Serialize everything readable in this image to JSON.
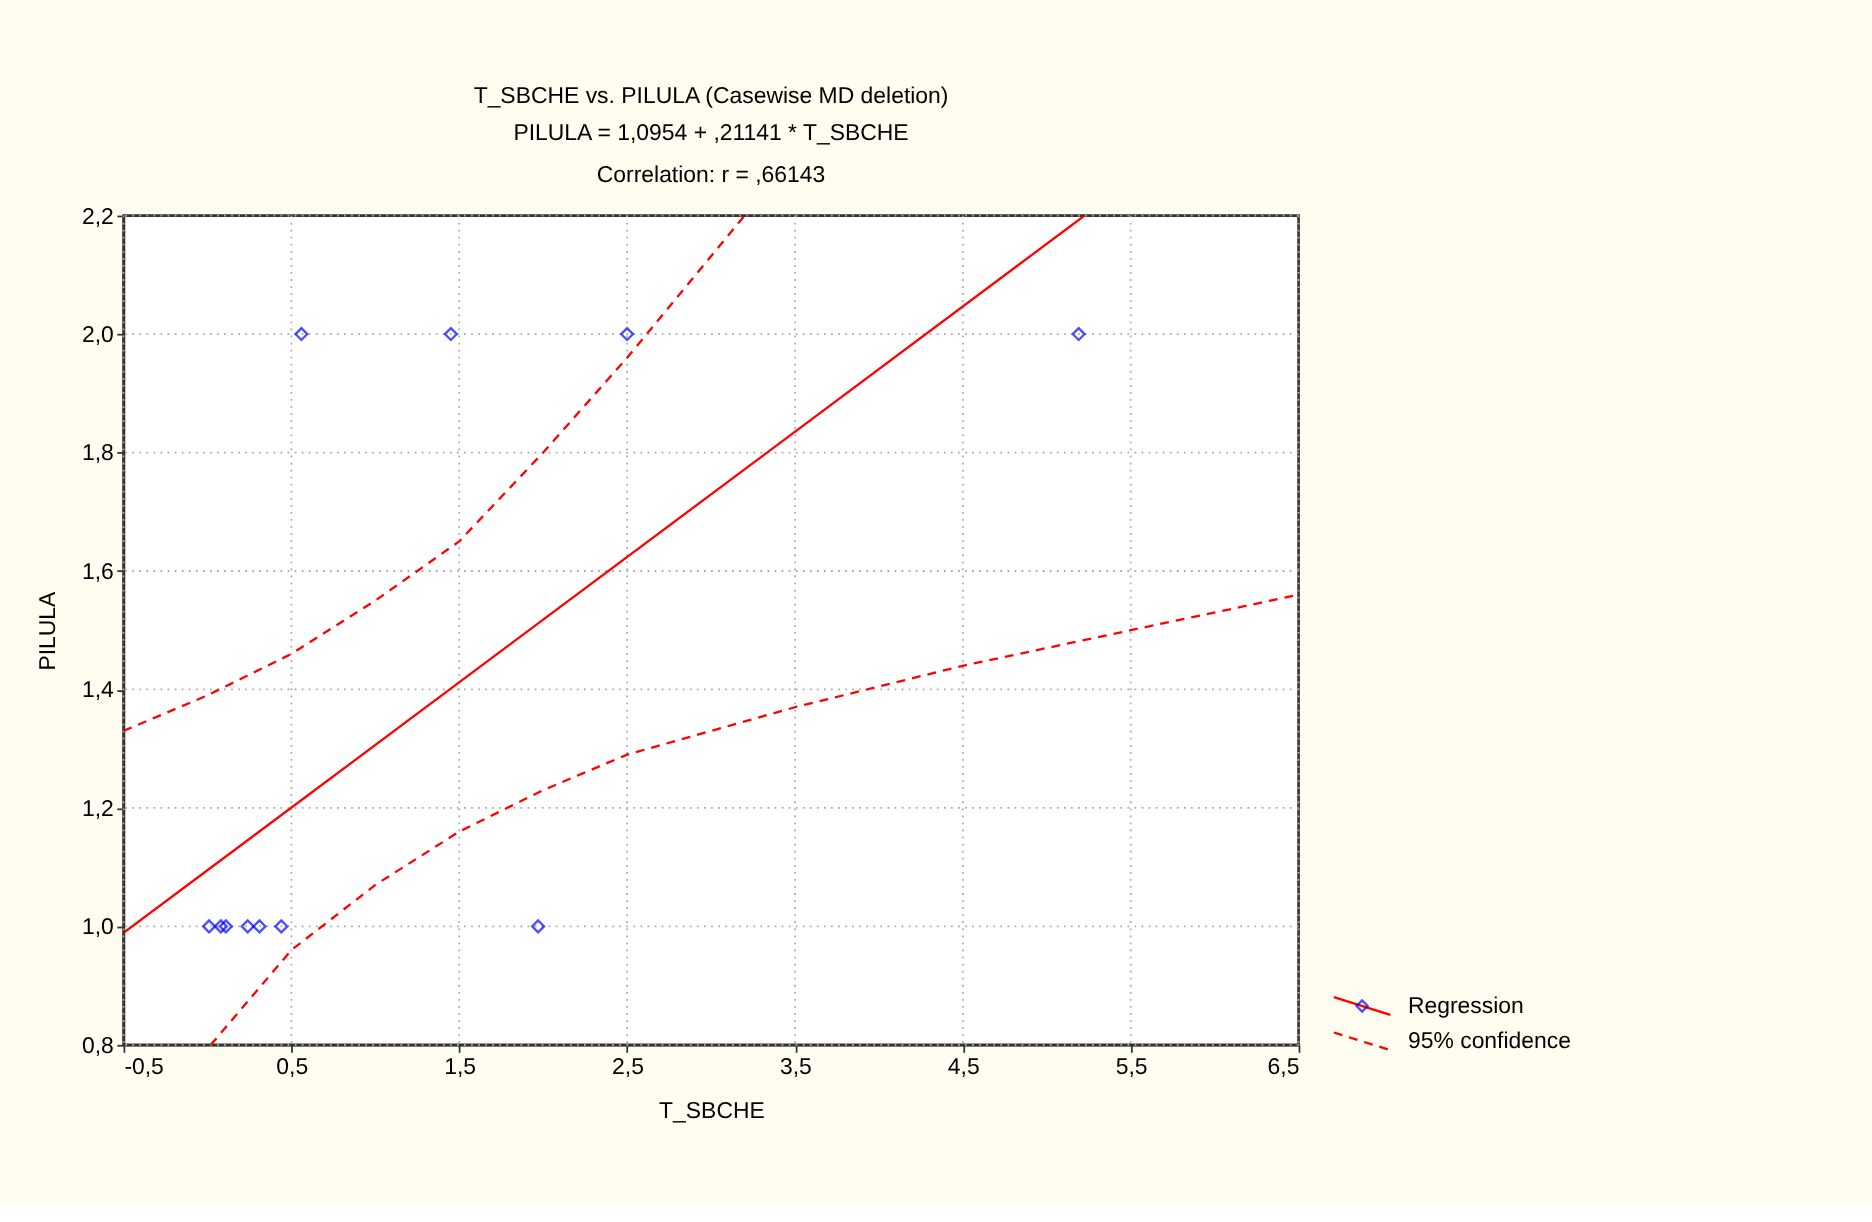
{
  "chart_data": {
    "type": "scatter",
    "title": "T_SBCHE vs. PILULA (Casewise MD deletion)",
    "subtitle": "PILULA = 1,0954 + ,21141 * T_SBCHE",
    "annotations": [
      "Correlation: r = ,66143"
    ],
    "xlabel": "T_SBCHE",
    "ylabel": "PILULA",
    "xlim": [
      -0.5,
      6.5
    ],
    "ylim": [
      0.8,
      2.2
    ],
    "xticks": [
      {
        "value": -0.5,
        "label": "-0,5"
      },
      {
        "value": 0.5,
        "label": "0,5"
      },
      {
        "value": 1.5,
        "label": "1,5"
      },
      {
        "value": 2.5,
        "label": "2,5"
      },
      {
        "value": 3.5,
        "label": "3,5"
      },
      {
        "value": 4.5,
        "label": "4,5"
      },
      {
        "value": 5.5,
        "label": "5,5"
      },
      {
        "value": 6.5,
        "label": "6,5"
      }
    ],
    "yticks": [
      {
        "value": 0.8,
        "label": "0,8"
      },
      {
        "value": 1.0,
        "label": "1,0"
      },
      {
        "value": 1.2,
        "label": "1,2"
      },
      {
        "value": 1.4,
        "label": "1,4"
      },
      {
        "value": 1.6,
        "label": "1,6"
      },
      {
        "value": 1.8,
        "label": "1,8"
      },
      {
        "value": 2.0,
        "label": "2,0"
      },
      {
        "value": 2.2,
        "label": "2,2"
      }
    ],
    "grid": true,
    "legend": "bottom right",
    "series": [
      {
        "marker": "diamond",
        "color": "#0000ff",
        "x": [
          0.56,
          1.45,
          2.5,
          5.19,
          0.01,
          0.08,
          0.11,
          0.24,
          0.31,
          0.44,
          1.97
        ],
        "values": [
          2.0,
          2.0,
          2.0,
          2.0,
          1.0,
          1.0,
          1.0,
          1.0,
          1.0,
          1.0,
          1.0
        ]
      },
      {
        "type": "line",
        "name": "Regression",
        "color": "#ff0000",
        "line_style": "solid",
        "x": [
          -0.5,
          5.225
        ],
        "values": [
          0.989,
          2.2
        ]
      },
      {
        "type": "line",
        "name": "95% confidence",
        "color": "#ff0000",
        "line_style": "dashed",
        "x": [
          -0.5,
          0.0,
          0.5,
          1.0,
          1.5,
          2.0,
          2.5,
          3.2
        ],
        "values": [
          1.33,
          1.39,
          1.46,
          1.55,
          1.65,
          1.8,
          1.96,
          2.2
        ]
      },
      {
        "type": "line",
        "color": "#ff0000",
        "line_style": "dashed",
        "x": [
          0.02,
          0.5,
          1.0,
          1.5,
          2.0,
          2.5,
          3.5,
          4.5,
          5.5,
          6.5
        ],
        "values": [
          0.8,
          0.96,
          1.07,
          1.16,
          1.23,
          1.29,
          1.37,
          1.44,
          1.5,
          1.56
        ]
      }
    ]
  }
}
